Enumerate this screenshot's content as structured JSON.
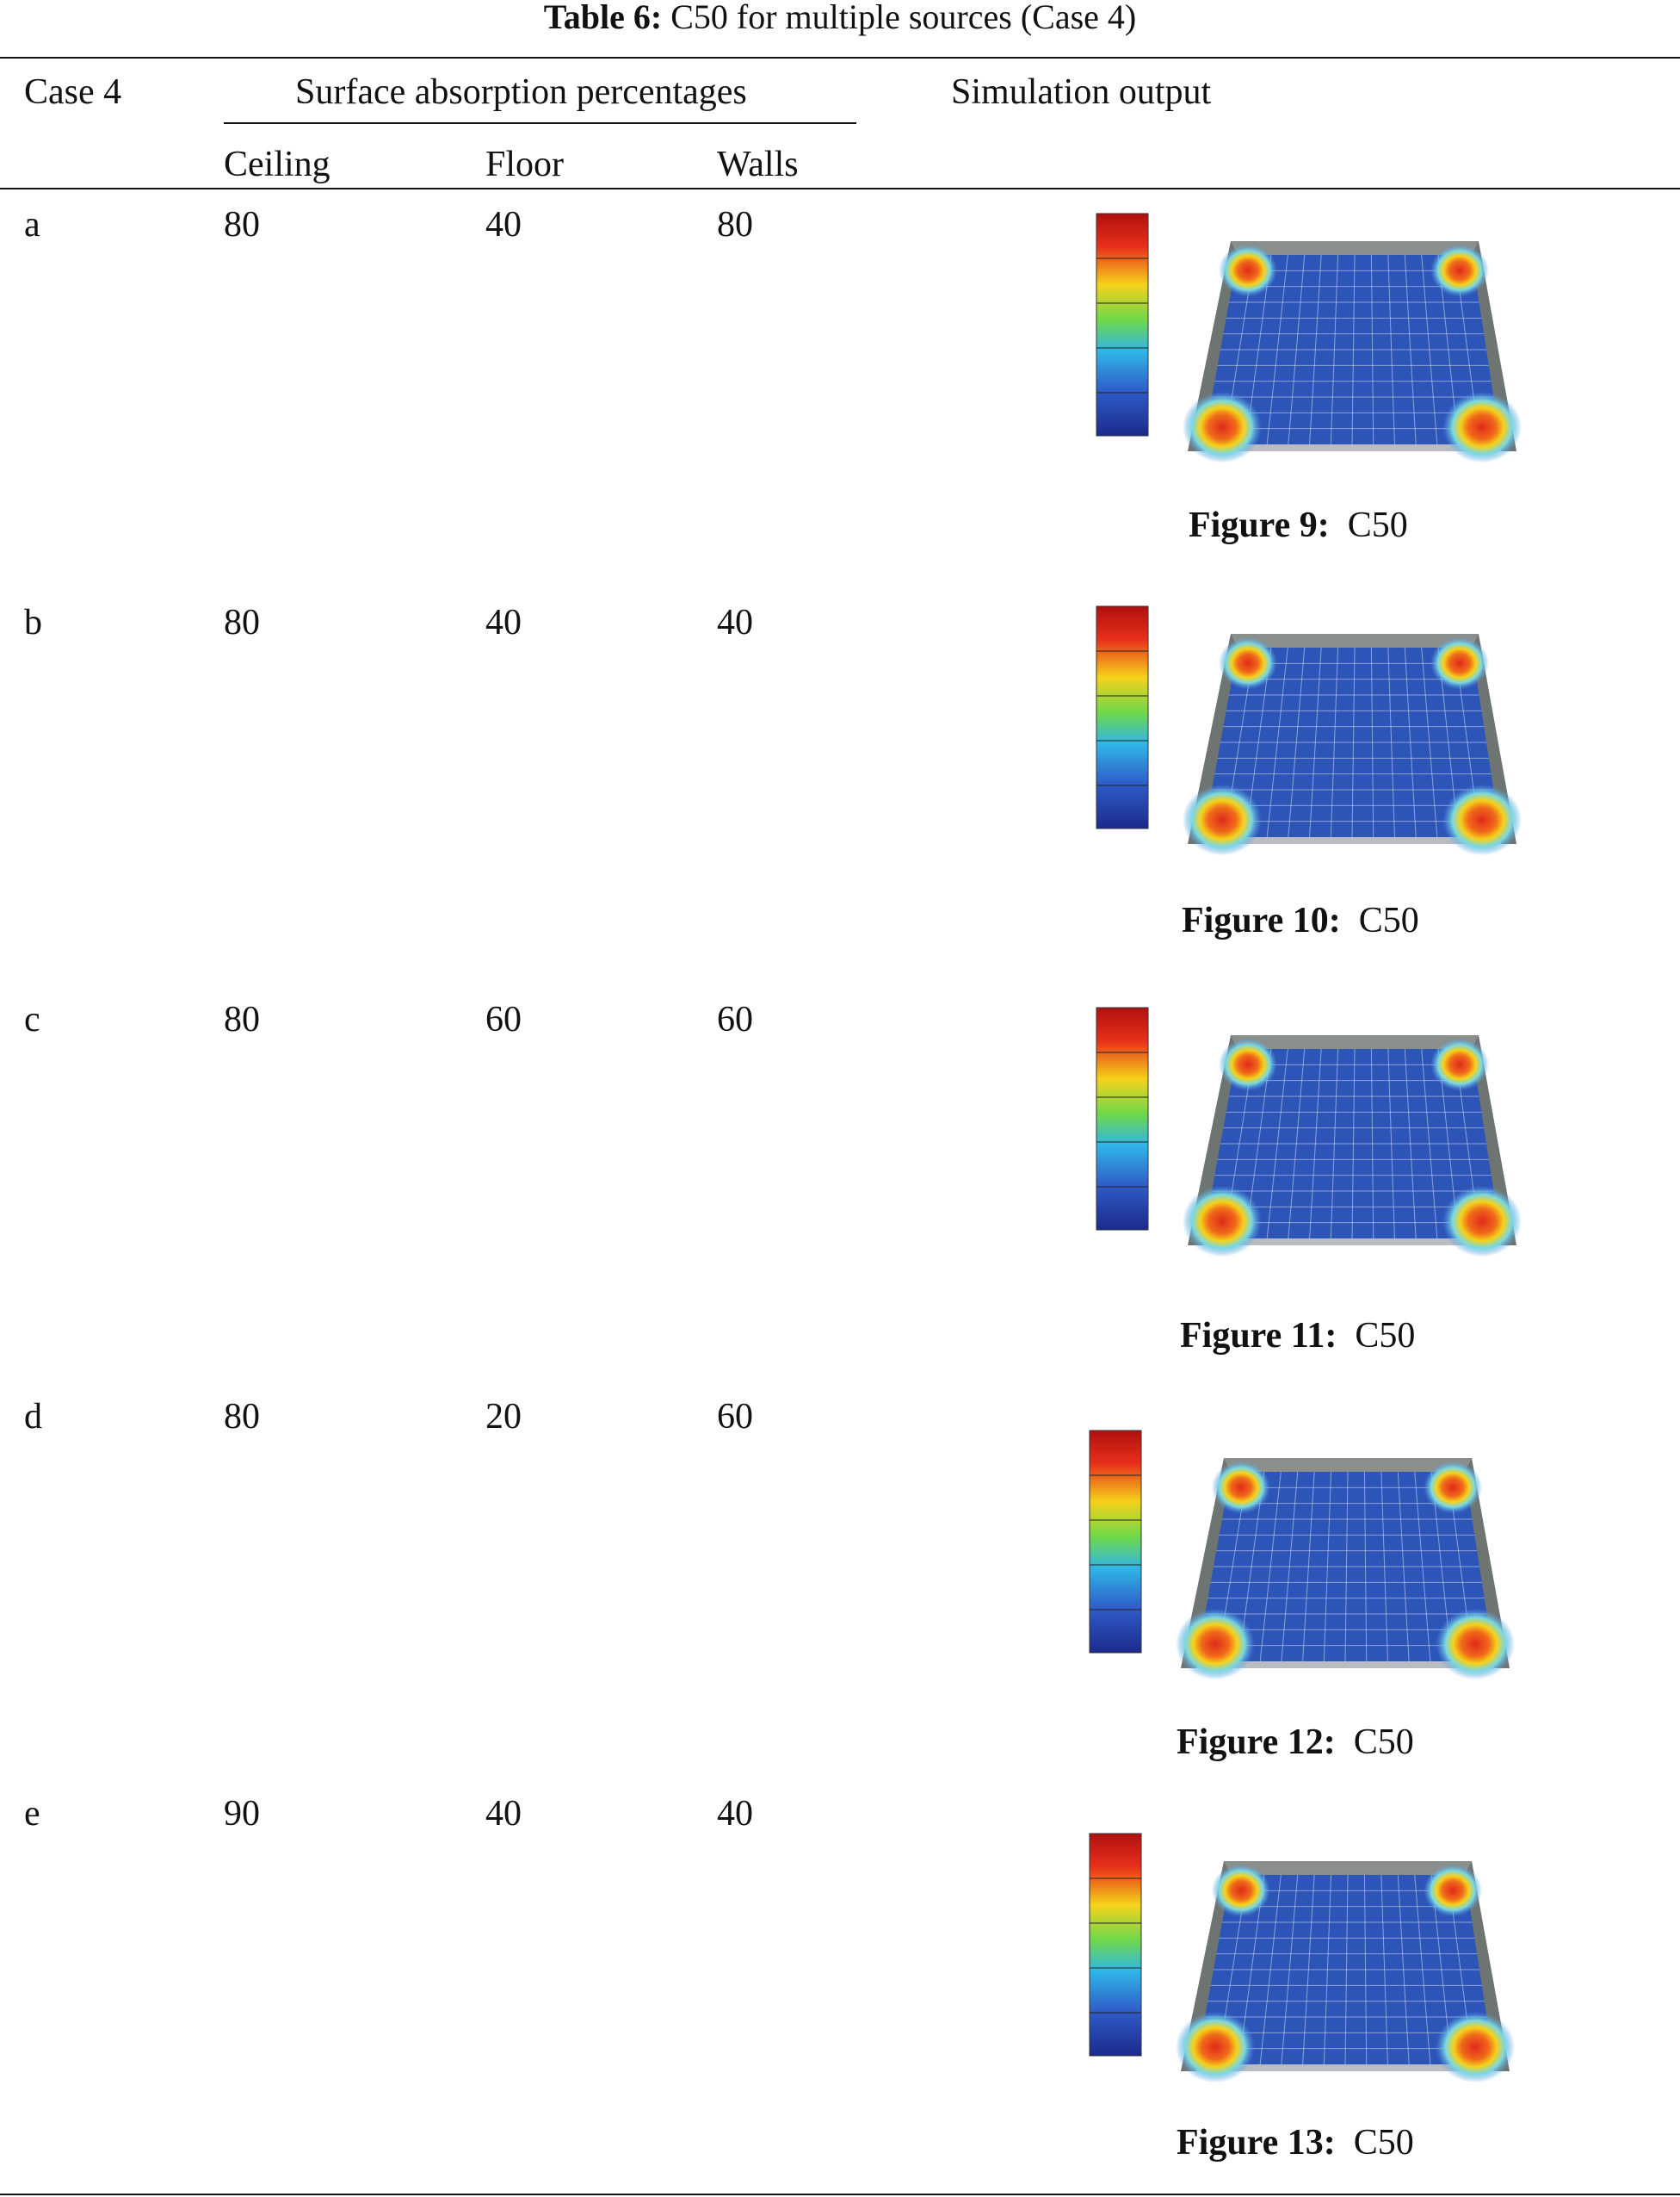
{
  "caption": {
    "label": "Table 6:",
    "text": "C50 for multiple sources (Case 4)"
  },
  "header": {
    "case": "Case 4",
    "group": "Surface absorption percentages",
    "output": "Simulation output",
    "ceiling": "Ceiling",
    "floor": "Floor",
    "walls": "Walls"
  },
  "rows": [
    {
      "case": "a",
      "ceiling": "80",
      "floor": "40",
      "walls": "80",
      "figure_label": "Figure 9:",
      "figure_text": "C50"
    },
    {
      "case": "b",
      "ceiling": "80",
      "floor": "40",
      "walls": "40",
      "figure_label": "Figure 10:",
      "figure_text": "C50"
    },
    {
      "case": "c",
      "ceiling": "80",
      "floor": "60",
      "walls": "60",
      "figure_label": "Figure 11:",
      "figure_text": "C50"
    },
    {
      "case": "d",
      "ceiling": "80",
      "floor": "20",
      "walls": "60",
      "figure_label": "Figure 12:",
      "figure_text": "C50"
    },
    {
      "case": "e",
      "ceiling": "90",
      "floor": "40",
      "walls": "40",
      "figure_label": "Figure 13:",
      "figure_text": "C50"
    }
  ],
  "colors": {
    "wall": "#6e7471",
    "floor_blue": "#2d55b8",
    "hot": "#e02a1a",
    "grid": "#ffffff"
  }
}
